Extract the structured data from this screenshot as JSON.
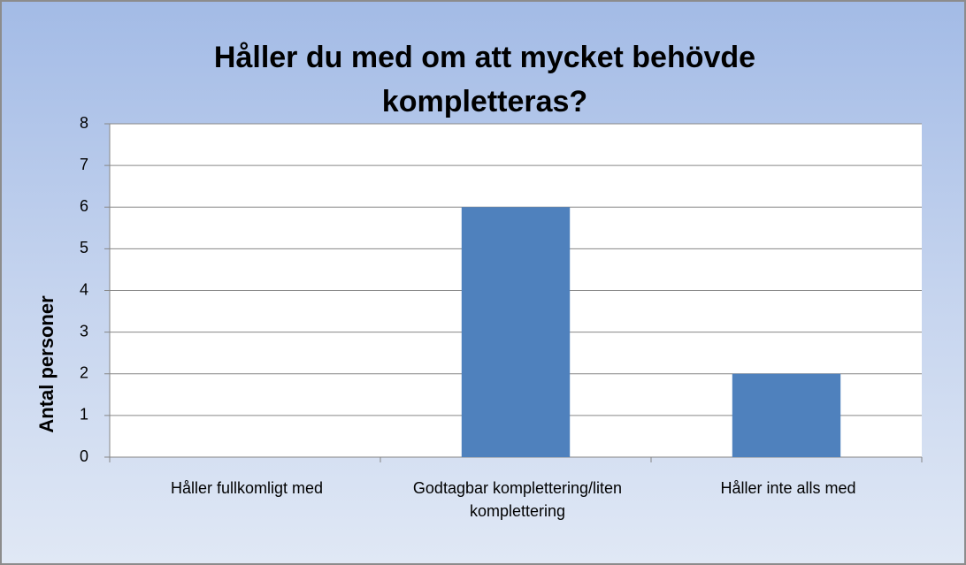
{
  "chart_data": {
    "type": "bar",
    "title": "Håller du med om att mycket behövde kompletteras?",
    "y_label": "Antal personer",
    "categories": [
      "Håller fullkomligt med",
      "Godtagbar komplettering/liten komplettering",
      "Håller inte alls med"
    ],
    "values": [
      0,
      6,
      2
    ],
    "color": "#4f81bd",
    "ylim": [
      0,
      8
    ],
    "yticks": [
      0,
      1,
      2,
      3,
      4,
      5,
      6,
      7,
      8
    ],
    "grid": true
  }
}
